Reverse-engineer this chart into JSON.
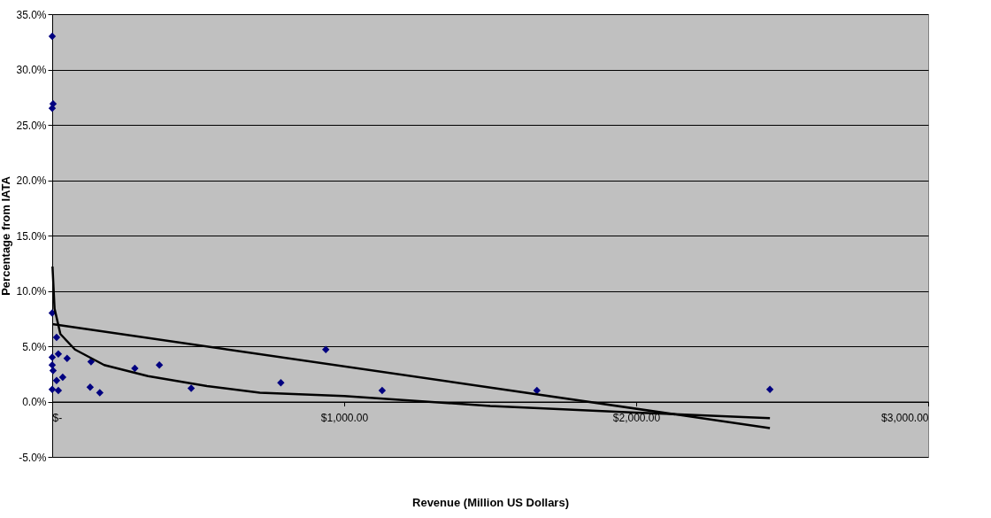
{
  "chart_data": {
    "type": "scatter",
    "xlabel": "Revenue (Million US Dollars)",
    "ylabel": "Percentage from IATA",
    "xlim": [
      0,
      3000
    ],
    "xticks": [
      {
        "value": 0,
        "label": "$-"
      },
      {
        "value": 1000,
        "label": "$1,000.00"
      },
      {
        "value": 2000,
        "label": "$2,000.00"
      },
      {
        "value": 3000,
        "label": "$3,000.00"
      }
    ],
    "ylim": [
      -5,
      35
    ],
    "yticks": [
      {
        "value": -5,
        "label": "-5.0%"
      },
      {
        "value": 0,
        "label": "0.0%"
      },
      {
        "value": 5,
        "label": "5.0%"
      },
      {
        "value": 10,
        "label": "10.0%"
      },
      {
        "value": 15,
        "label": "15.0%"
      },
      {
        "value": 20,
        "label": "20.0%"
      },
      {
        "value": 25,
        "label": "25.0%"
      },
      {
        "value": 30,
        "label": "30.0%"
      },
      {
        "value": 35,
        "label": "35.0%"
      }
    ],
    "grid": "y",
    "legend": false,
    "marker": "diamond",
    "series": [
      {
        "color": "#000080",
        "x": [
          0,
          3,
          0,
          0,
          15,
          0,
          21,
          51,
          0,
          3,
          36,
          15,
          0,
          21,
          133,
          130,
          163,
          283,
          367,
          476,
          783,
          937,
          1130,
          1660,
          2458
        ],
        "values": [
          33.0,
          26.9,
          26.5,
          8.0,
          5.8,
          4.0,
          4.3,
          3.9,
          3.3,
          2.8,
          2.2,
          1.9,
          1.1,
          1.0,
          3.6,
          1.3,
          0.8,
          3.0,
          3.3,
          1.2,
          1.7,
          4.7,
          1.0,
          1.0,
          1.1
        ]
      },
      {
        "type": "line",
        "color": "#000000",
        "line_style": "solid",
        "marker": "none",
        "x": [
          0,
          2458
        ],
        "values": [
          7.0,
          -2.4
        ]
      },
      {
        "type": "line",
        "color": "#000000",
        "line_style": "solid",
        "marker": "none",
        "x": [
          1,
          8,
          28,
          78,
          178,
          328,
          530,
          711,
          1000,
          1500,
          2000,
          2458
        ],
        "values": [
          12.2,
          8.4,
          6.1,
          4.7,
          3.3,
          2.3,
          1.4,
          0.8,
          0.5,
          -0.4,
          -1.0,
          -1.5
        ]
      }
    ]
  }
}
